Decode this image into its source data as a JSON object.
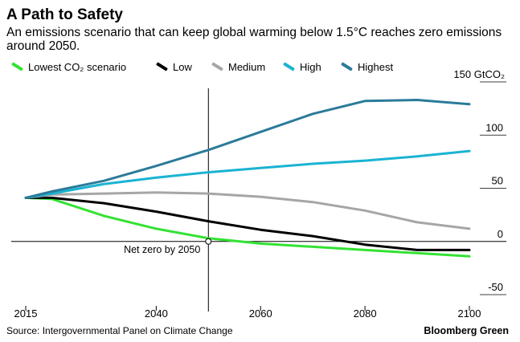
{
  "title": "A Path to Safety",
  "subtitle": "An emissions scenario that can keep global warming below 1.5°C reaches zero emissions around 2050.",
  "legend": [
    {
      "label": "Lowest CO₂ scenario",
      "color": "#33e233"
    },
    {
      "label": "Low",
      "color": "#000000"
    },
    {
      "label": "Medium",
      "color": "#a6a6a6"
    },
    {
      "label": "High",
      "color": "#1ab3d3"
    },
    {
      "label": "Highest",
      "color": "#2b7b99"
    }
  ],
  "annotation": "Net zero by 2050",
  "source": "Source: Intergovernmental Panel on Climate Change",
  "brand": "Bloomberg Green",
  "chart_data": {
    "type": "line",
    "title": "A Path to Safety",
    "subtitle": "An emissions scenario that can keep global warming below 1.5°C reaches zero emissions around 2050.",
    "xlabel": "",
    "ylabel": "",
    "unit": "GtCO₂",
    "xlim": [
      2015,
      2100
    ],
    "ylim": [
      -50,
      150
    ],
    "x_ticks": [
      {
        "value": 2015,
        "label": "2015"
      },
      {
        "value": 2040,
        "label": "2040"
      },
      {
        "value": 2060,
        "label": "2060"
      },
      {
        "value": 2080,
        "label": "2080"
      },
      {
        "value": 2100,
        "label": "2100"
      }
    ],
    "y_ticks": [
      {
        "value": 150,
        "label": "150 GtCO₂"
      },
      {
        "value": 100,
        "label": "100"
      },
      {
        "value": 50,
        "label": "50"
      },
      {
        "value": 0,
        "label": "0"
      },
      {
        "value": -50,
        "label": "-50"
      }
    ],
    "grid": "y",
    "legend_position": "top",
    "annotation": {
      "x": 2050,
      "y": 0,
      "label": "Net zero by 2050"
    },
    "x": [
      2015,
      2020,
      2030,
      2040,
      2050,
      2060,
      2070,
      2080,
      2090,
      2100
    ],
    "series": [
      {
        "name": "Lowest CO₂ scenario",
        "color": "#33e233",
        "values": [
          41,
          40,
          24,
          12,
          3,
          -2,
          -5,
          -8,
          -11,
          -14
        ]
      },
      {
        "name": "Low",
        "color": "#000000",
        "values": [
          41,
          41,
          36,
          28,
          19,
          11,
          5,
          -3,
          -8,
          -8
        ]
      },
      {
        "name": "Medium",
        "color": "#a6a6a6",
        "values": [
          41,
          44,
          45,
          46,
          45,
          42,
          37,
          29,
          18,
          12
        ]
      },
      {
        "name": "High",
        "color": "#1ab3d3",
        "values": [
          41,
          45,
          54,
          60,
          65,
          69,
          73,
          76,
          80,
          85
        ]
      },
      {
        "name": "Highest",
        "color": "#2b7b99",
        "values": [
          41,
          47,
          57,
          71,
          86,
          103,
          120,
          132,
          133,
          129
        ]
      }
    ]
  }
}
